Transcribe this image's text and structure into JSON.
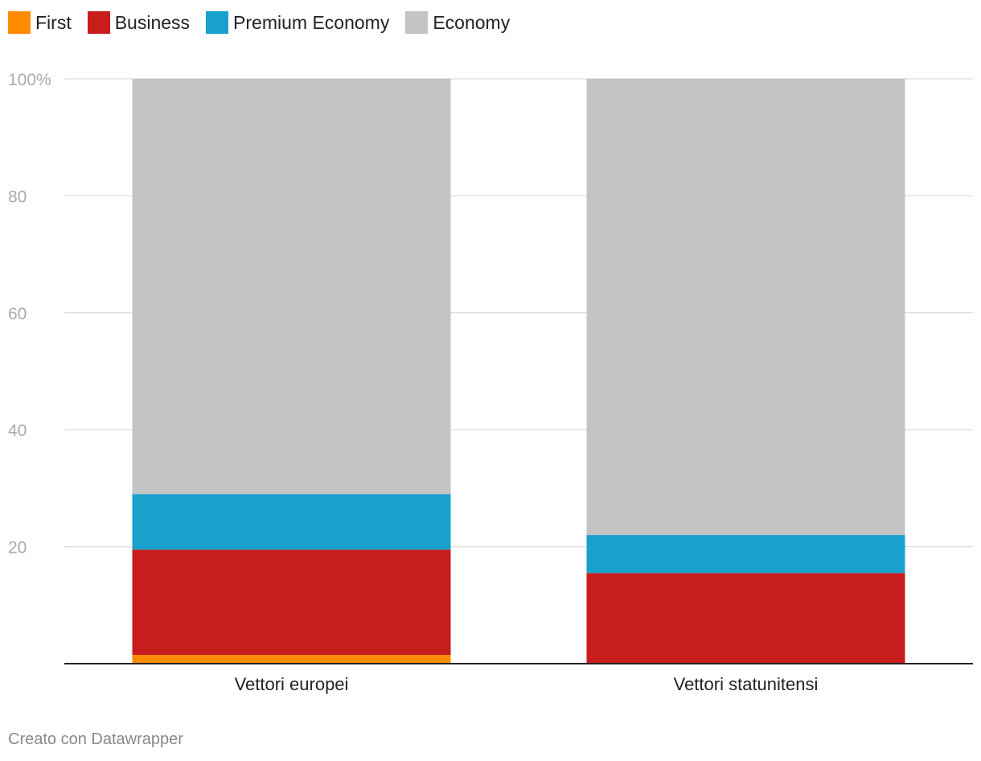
{
  "chart_data": {
    "type": "bar",
    "stacked": true,
    "categories": [
      "Vettori europei",
      "Vettori statunitensi"
    ],
    "series": [
      {
        "name": "First",
        "color": "#ff8c00",
        "values": [
          1.5,
          0
        ]
      },
      {
        "name": "Business",
        "color": "#c71e1d",
        "values": [
          18,
          15.5
        ]
      },
      {
        "name": "Premium Economy",
        "color": "#18a1cd",
        "values": [
          9.5,
          6.5
        ]
      },
      {
        "name": "Economy",
        "color": "#c4c4c4",
        "values": [
          71,
          78
        ]
      }
    ],
    "ylim": [
      0,
      100
    ],
    "yticks": [
      20,
      40,
      60,
      80,
      100
    ],
    "ytick_labels": [
      "20",
      "40",
      "60",
      "80",
      "100%"
    ],
    "title": "",
    "xlabel": "",
    "ylabel": "",
    "legend_position": "top-left",
    "grid": true
  },
  "footer": {
    "credit": "Creato con Datawrapper"
  }
}
